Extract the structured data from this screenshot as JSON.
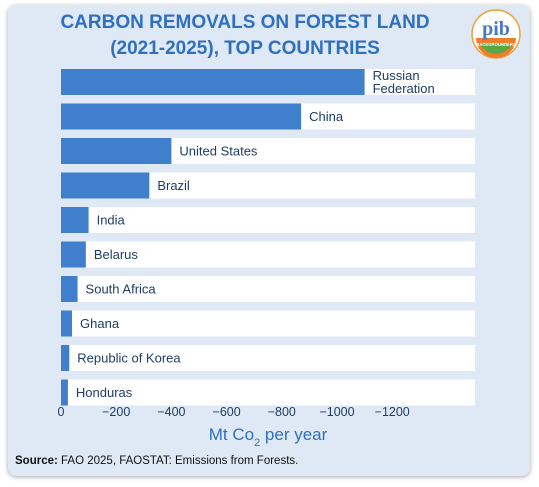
{
  "title_line1": "CARBON REMOVALS ON FOREST LAND",
  "title_line2": "(2021-2025), TOP COUNTRIES",
  "logo": {
    "text": "pib",
    "subtext": "BACKGROUNDERS",
    "icon": "pib-logo-icon"
  },
  "source": {
    "label": "Source:",
    "text": "FAO 2025, FAOSTAT: Emissions from Forests."
  },
  "colors": {
    "bar": "#3f7fcc",
    "title": "#2f6fbf",
    "track": "#ffffff",
    "background": "#dfe9f5"
  },
  "chart_data": {
    "type": "bar",
    "orientation": "horizontal",
    "title": "CARBON REMOVALS ON FOREST LAND (2021-2025), TOP COUNTRIES",
    "xlabel_main": "Mt Co",
    "xlabel_sub": "2",
    "xlabel_tail": " per year",
    "categories": [
      "Russian Federation",
      "China",
      "United States",
      "Brazil",
      "India",
      "Belarus",
      "South Africa",
      "Ghana",
      "Republic of Korea",
      "Honduras"
    ],
    "category_lines": [
      [
        "Russian",
        "Federation"
      ],
      [
        "China"
      ],
      [
        "United States"
      ],
      [
        "Brazil"
      ],
      [
        "India"
      ],
      [
        "Belarus"
      ],
      [
        "South Africa"
      ],
      [
        "Ghana"
      ],
      [
        "Republic of Korea"
      ],
      [
        "Honduras"
      ]
    ],
    "values": [
      -1100,
      -870,
      -400,
      -320,
      -100,
      -90,
      -60,
      -40,
      -30,
      -25
    ],
    "xticks": [
      0,
      -200,
      -400,
      -600,
      -800,
      -1000,
      -1200
    ],
    "xlim": [
      0,
      -1500
    ],
    "grid": false,
    "legend": "none"
  }
}
